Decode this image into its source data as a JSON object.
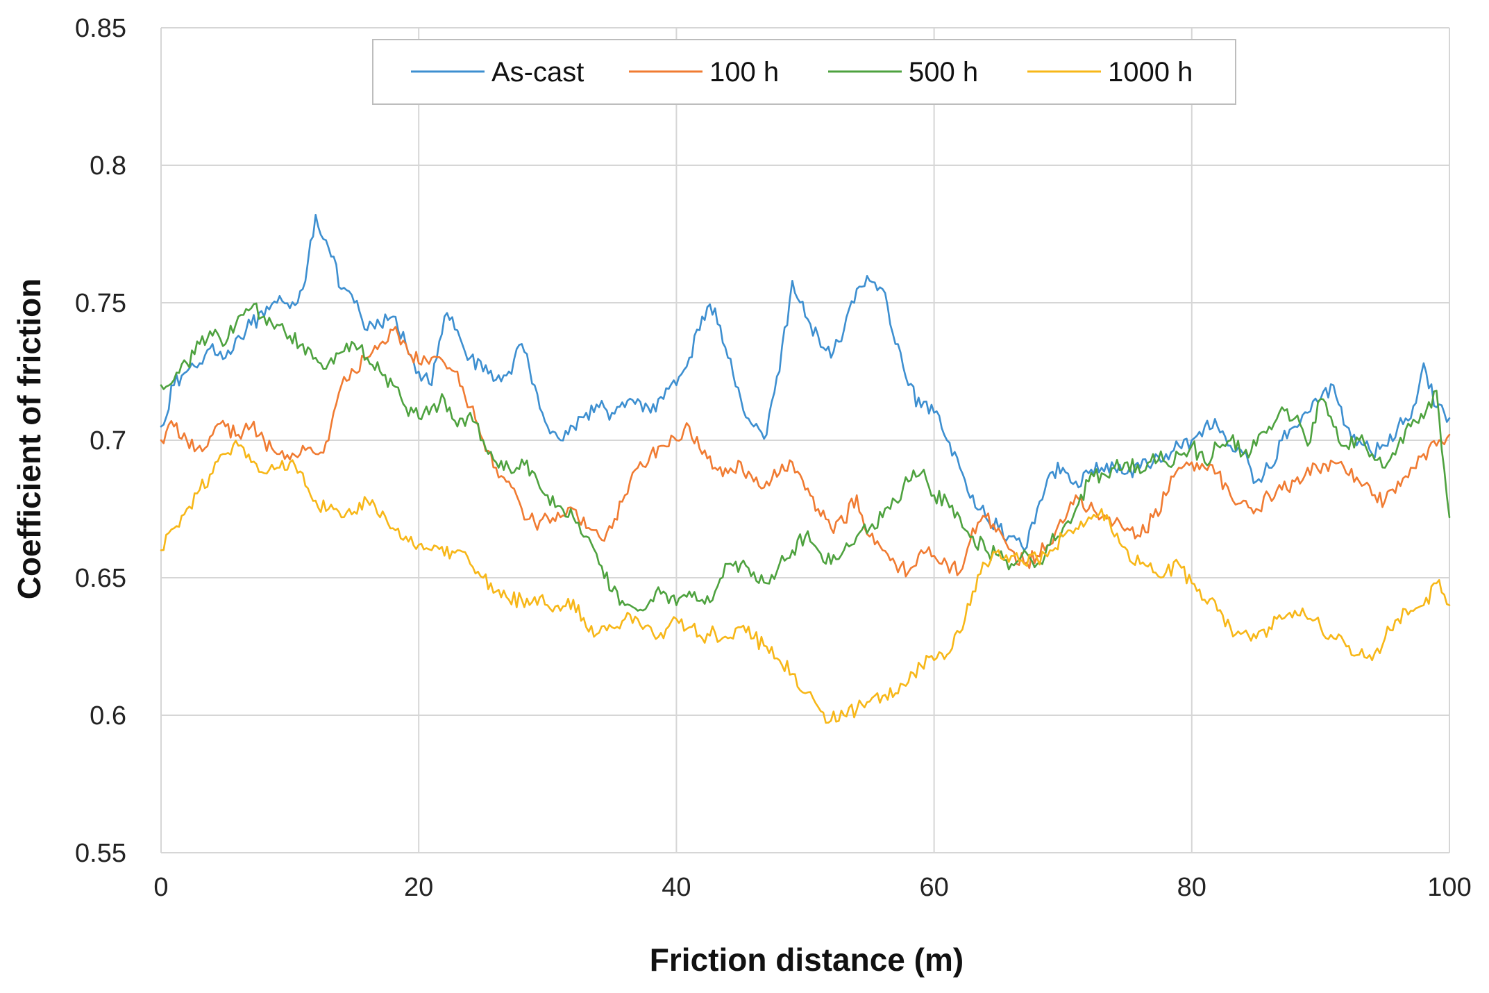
{
  "chart_data": {
    "type": "line",
    "title": "",
    "xlabel": "Friction distance (m)",
    "ylabel": "Coefficient of friction",
    "xlim": [
      0,
      100
    ],
    "ylim": [
      0.55,
      0.85
    ],
    "x_ticks": [
      0,
      20,
      40,
      60,
      80,
      100
    ],
    "x_tick_labels": [
      "0",
      "20",
      "40",
      "60",
      "80",
      "100"
    ],
    "y_ticks": [
      0.55,
      0.6,
      0.65,
      0.7,
      0.75,
      0.8,
      0.85
    ],
    "y_tick_labels": [
      "0.55",
      "0.6",
      "0.65",
      "0.7",
      "0.75",
      "0.8",
      "0.85"
    ],
    "grid": true,
    "legend_position": "top-center",
    "series": [
      {
        "name": "As-cast",
        "color": "#3d8fd0",
        "x": [
          0,
          1,
          2,
          3,
          4,
          5,
          6,
          7,
          8,
          9,
          10,
          11,
          12,
          13,
          14,
          15,
          16,
          17,
          18,
          19,
          20,
          21,
          22,
          23,
          24,
          25,
          26,
          27,
          28,
          29,
          30,
          31,
          32,
          33,
          34,
          35,
          36,
          37,
          38,
          39,
          40,
          41,
          42,
          43,
          44,
          45,
          46,
          47,
          48,
          49,
          50,
          51,
          52,
          53,
          54,
          55,
          56,
          57,
          58,
          59,
          60,
          61,
          62,
          63,
          64,
          65,
          66,
          67,
          68,
          69,
          70,
          71,
          72,
          73,
          74,
          75,
          76,
          77,
          78,
          79,
          80,
          81,
          82,
          83,
          84,
          85,
          86,
          87,
          88,
          89,
          90,
          91,
          92,
          93,
          94,
          95,
          96,
          97,
          98,
          99,
          100
        ],
        "values": [
          0.705,
          0.72,
          0.725,
          0.728,
          0.735,
          0.73,
          0.738,
          0.742,
          0.745,
          0.75,
          0.748,
          0.755,
          0.782,
          0.77,
          0.755,
          0.75,
          0.74,
          0.742,
          0.745,
          0.735,
          0.725,
          0.72,
          0.745,
          0.74,
          0.73,
          0.725,
          0.722,
          0.725,
          0.735,
          0.72,
          0.705,
          0.7,
          0.705,
          0.71,
          0.712,
          0.71,
          0.712,
          0.715,
          0.71,
          0.715,
          0.72,
          0.73,
          0.745,
          0.748,
          0.73,
          0.715,
          0.705,
          0.702,
          0.725,
          0.758,
          0.745,
          0.738,
          0.73,
          0.74,
          0.755,
          0.758,
          0.755,
          0.735,
          0.72,
          0.712,
          0.71,
          0.7,
          0.69,
          0.68,
          0.672,
          0.668,
          0.665,
          0.66,
          0.675,
          0.688,
          0.69,
          0.685,
          0.688,
          0.69,
          0.69,
          0.688,
          0.69,
          0.692,
          0.695,
          0.698,
          0.7,
          0.705,
          0.705,
          0.698,
          0.695,
          0.685,
          0.69,
          0.7,
          0.705,
          0.71,
          0.715,
          0.72,
          0.705,
          0.7,
          0.695,
          0.698,
          0.705,
          0.708,
          0.728,
          0.712,
          0.708
        ]
      },
      {
        "name": "100 h",
        "color": "#f07b32",
        "x": [
          0,
          1,
          2,
          3,
          4,
          5,
          6,
          7,
          8,
          9,
          10,
          11,
          12,
          13,
          14,
          15,
          16,
          17,
          18,
          19,
          20,
          21,
          22,
          23,
          24,
          25,
          26,
          27,
          28,
          29,
          30,
          31,
          32,
          33,
          34,
          35,
          36,
          37,
          38,
          39,
          40,
          41,
          42,
          43,
          44,
          45,
          46,
          47,
          48,
          49,
          50,
          51,
          52,
          53,
          54,
          55,
          56,
          57,
          58,
          59,
          60,
          61,
          62,
          63,
          64,
          65,
          66,
          67,
          68,
          69,
          70,
          71,
          72,
          73,
          74,
          75,
          76,
          77,
          78,
          79,
          80,
          81,
          82,
          83,
          84,
          85,
          86,
          87,
          88,
          89,
          90,
          91,
          92,
          93,
          94,
          95,
          96,
          97,
          98,
          99,
          100
        ],
        "values": [
          0.7,
          0.705,
          0.7,
          0.698,
          0.702,
          0.705,
          0.702,
          0.705,
          0.7,
          0.695,
          0.693,
          0.698,
          0.695,
          0.7,
          0.72,
          0.725,
          0.73,
          0.735,
          0.74,
          0.735,
          0.728,
          0.73,
          0.728,
          0.725,
          0.712,
          0.7,
          0.69,
          0.685,
          0.675,
          0.67,
          0.672,
          0.672,
          0.675,
          0.668,
          0.665,
          0.668,
          0.68,
          0.69,
          0.695,
          0.698,
          0.7,
          0.705,
          0.695,
          0.69,
          0.688,
          0.692,
          0.685,
          0.685,
          0.688,
          0.692,
          0.682,
          0.675,
          0.668,
          0.67,
          0.68,
          0.665,
          0.66,
          0.655,
          0.652,
          0.66,
          0.658,
          0.655,
          0.652,
          0.668,
          0.672,
          0.668,
          0.66,
          0.655,
          0.658,
          0.662,
          0.67,
          0.68,
          0.675,
          0.672,
          0.67,
          0.668,
          0.665,
          0.672,
          0.68,
          0.69,
          0.692,
          0.69,
          0.688,
          0.68,
          0.678,
          0.675,
          0.68,
          0.682,
          0.685,
          0.69,
          0.688,
          0.692,
          0.688,
          0.685,
          0.68,
          0.678,
          0.685,
          0.69,
          0.695,
          0.698,
          0.702
        ]
      },
      {
        "name": "500 h",
        "color": "#4ea23f",
        "x": [
          0,
          1,
          2,
          3,
          4,
          5,
          6,
          7,
          8,
          9,
          10,
          11,
          12,
          13,
          14,
          15,
          16,
          17,
          18,
          19,
          20,
          21,
          22,
          23,
          24,
          25,
          26,
          27,
          28,
          29,
          30,
          31,
          32,
          33,
          34,
          35,
          36,
          37,
          38,
          39,
          40,
          41,
          42,
          43,
          44,
          45,
          46,
          47,
          48,
          49,
          50,
          51,
          52,
          53,
          54,
          55,
          56,
          57,
          58,
          59,
          60,
          61,
          62,
          63,
          64,
          65,
          66,
          67,
          68,
          69,
          70,
          71,
          72,
          73,
          74,
          75,
          76,
          77,
          78,
          79,
          80,
          81,
          82,
          83,
          84,
          85,
          86,
          87,
          88,
          89,
          90,
          91,
          92,
          93,
          94,
          95,
          96,
          97,
          98,
          99,
          100
        ],
        "values": [
          0.72,
          0.722,
          0.728,
          0.735,
          0.738,
          0.735,
          0.745,
          0.748,
          0.745,
          0.742,
          0.738,
          0.735,
          0.73,
          0.728,
          0.732,
          0.735,
          0.73,
          0.725,
          0.72,
          0.712,
          0.708,
          0.712,
          0.715,
          0.705,
          0.71,
          0.7,
          0.692,
          0.69,
          0.693,
          0.688,
          0.68,
          0.676,
          0.672,
          0.665,
          0.655,
          0.645,
          0.64,
          0.638,
          0.642,
          0.645,
          0.64,
          0.645,
          0.642,
          0.645,
          0.655,
          0.655,
          0.652,
          0.648,
          0.655,
          0.66,
          0.665,
          0.66,
          0.655,
          0.66,
          0.665,
          0.668,
          0.672,
          0.678,
          0.685,
          0.688,
          0.68,
          0.678,
          0.672,
          0.665,
          0.66,
          0.658,
          0.655,
          0.66,
          0.655,
          0.662,
          0.668,
          0.675,
          0.685,
          0.688,
          0.69,
          0.692,
          0.688,
          0.695,
          0.692,
          0.695,
          0.698,
          0.692,
          0.698,
          0.7,
          0.695,
          0.698,
          0.705,
          0.712,
          0.708,
          0.698,
          0.715,
          0.705,
          0.698,
          0.7,
          0.695,
          0.69,
          0.698,
          0.705,
          0.708,
          0.718,
          0.672
        ]
      },
      {
        "name": "1000 h",
        "color": "#f7b718",
        "x": [
          0,
          1,
          2,
          3,
          4,
          5,
          6,
          7,
          8,
          9,
          10,
          11,
          12,
          13,
          14,
          15,
          16,
          17,
          18,
          19,
          20,
          21,
          22,
          23,
          24,
          25,
          26,
          27,
          28,
          29,
          30,
          31,
          32,
          33,
          34,
          35,
          36,
          37,
          38,
          39,
          40,
          41,
          42,
          43,
          44,
          45,
          46,
          47,
          48,
          49,
          50,
          51,
          52,
          53,
          54,
          55,
          56,
          57,
          58,
          59,
          60,
          61,
          62,
          63,
          64,
          65,
          66,
          67,
          68,
          69,
          70,
          71,
          72,
          73,
          74,
          75,
          76,
          77,
          78,
          79,
          80,
          81,
          82,
          83,
          84,
          85,
          86,
          87,
          88,
          89,
          90,
          91,
          92,
          93,
          94,
          95,
          96,
          97,
          98,
          99,
          100
        ],
        "values": [
          0.66,
          0.668,
          0.675,
          0.682,
          0.688,
          0.695,
          0.698,
          0.692,
          0.688,
          0.69,
          0.692,
          0.688,
          0.678,
          0.675,
          0.672,
          0.674,
          0.678,
          0.672,
          0.668,
          0.665,
          0.662,
          0.66,
          0.658,
          0.66,
          0.655,
          0.65,
          0.645,
          0.642,
          0.642,
          0.643,
          0.64,
          0.638,
          0.642,
          0.632,
          0.63,
          0.632,
          0.635,
          0.635,
          0.632,
          0.628,
          0.635,
          0.632,
          0.628,
          0.63,
          0.628,
          0.632,
          0.628,
          0.625,
          0.62,
          0.615,
          0.608,
          0.603,
          0.598,
          0.6,
          0.602,
          0.605,
          0.607,
          0.608,
          0.612,
          0.618,
          0.62,
          0.622,
          0.63,
          0.645,
          0.655,
          0.66,
          0.658,
          0.655,
          0.657,
          0.66,
          0.665,
          0.668,
          0.672,
          0.675,
          0.665,
          0.66,
          0.655,
          0.652,
          0.652,
          0.655,
          0.648,
          0.642,
          0.638,
          0.632,
          0.63,
          0.628,
          0.632,
          0.635,
          0.638,
          0.635,
          0.632,
          0.628,
          0.625,
          0.622,
          0.62,
          0.628,
          0.635,
          0.638,
          0.64,
          0.648,
          0.64
        ]
      }
    ]
  }
}
